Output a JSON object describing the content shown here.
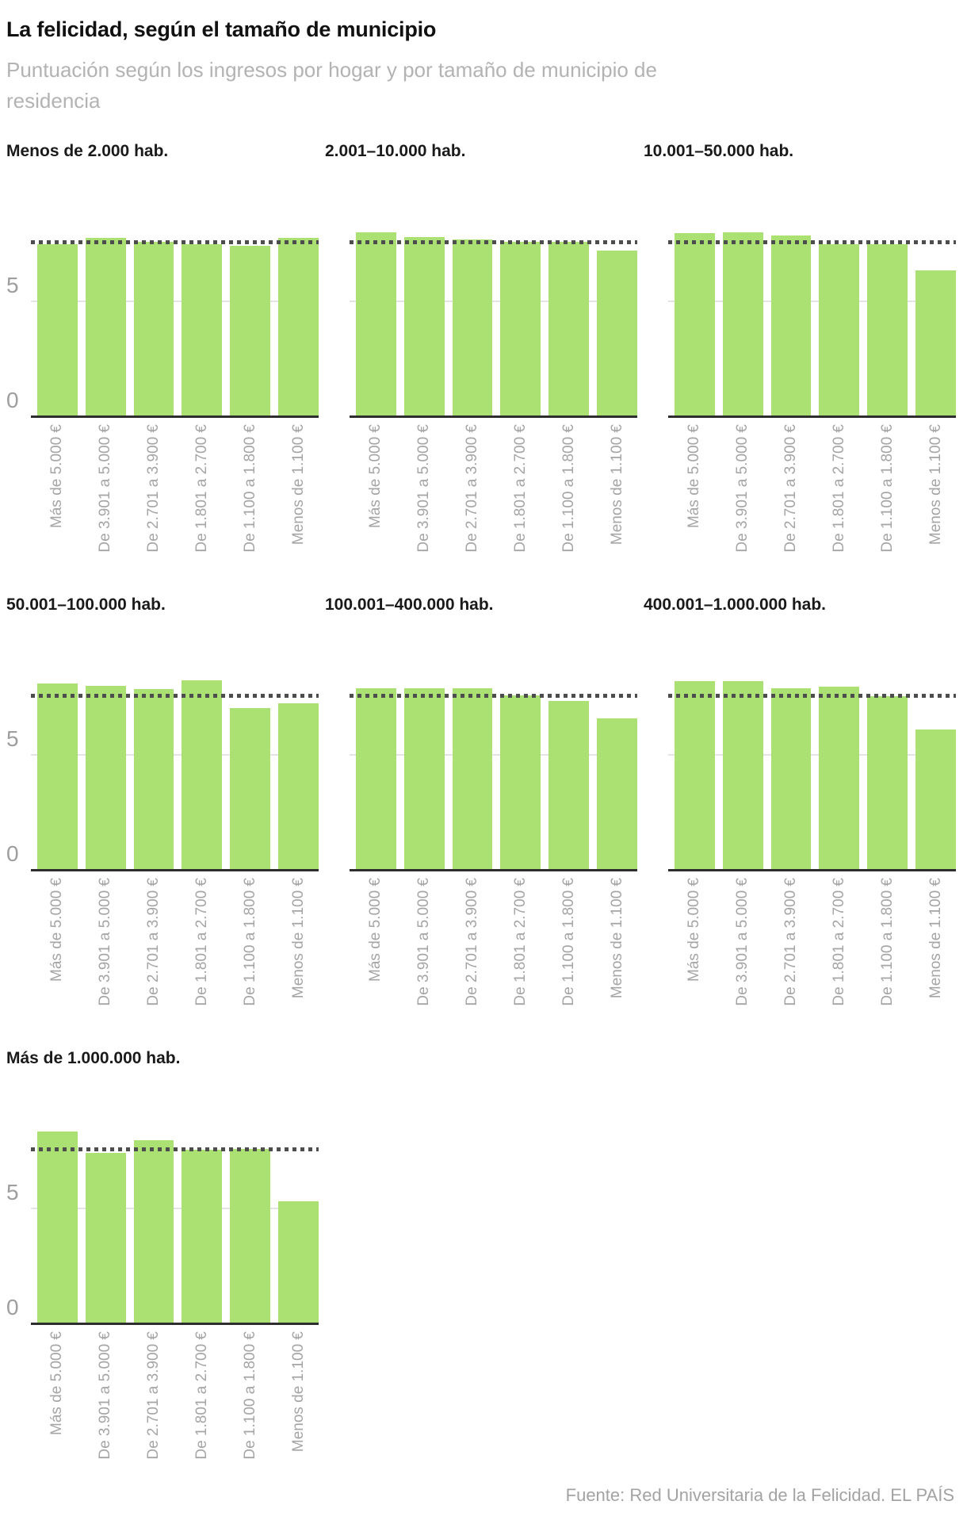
{
  "chart_data": {
    "type": "bar",
    "title": "La felicidad, según el tamaño de municipio",
    "subtitle": "Puntuación según los ingresos por hogar y por tamaño de municipio de residencia",
    "source": "Fuente: Red Universitaria de la Felicidad. EL PAÍS",
    "categories": [
      "Más de 5.000 €",
      "De 3.901 a 5.000 €",
      "De 2.701 a 3.900 €",
      "De 1.801 a 2.700 €",
      "De 1.100 a 1.800 €",
      "Menos de 1.100 €"
    ],
    "panels": [
      {
        "label": "Menos de 2.000 hab.",
        "values": [
          7.5,
          7.75,
          7.6,
          7.5,
          7.4,
          7.75
        ]
      },
      {
        "label": "2.001–10.000 hab.",
        "values": [
          8.0,
          7.8,
          7.7,
          7.6,
          7.6,
          7.2
        ]
      },
      {
        "label": "10.001–50.000 hab.",
        "values": [
          7.95,
          8.0,
          7.85,
          7.5,
          7.5,
          6.35
        ]
      },
      {
        "label": "50.001–100.000 hab.",
        "values": [
          8.1,
          8.0,
          7.85,
          8.25,
          7.05,
          7.25
        ]
      },
      {
        "label": "100.001–400.000 hab.",
        "values": [
          7.9,
          7.9,
          7.9,
          7.6,
          7.35,
          6.6
        ]
      },
      {
        "label": "400.001–1.000.000 hab.",
        "values": [
          8.2,
          8.2,
          7.9,
          7.95,
          7.55,
          6.1
        ]
      },
      {
        "label": "Más de 1.000.000 hab.",
        "values": [
          8.35,
          7.4,
          7.95,
          7.55,
          7.6,
          5.3
        ]
      }
    ],
    "ylim": [
      0,
      10
    ],
    "yticks": [
      "0",
      "5"
    ],
    "reference_line": 7.6,
    "bar_color": "#abe173",
    "columns": 3,
    "grid": "y-gridline-at-5-only",
    "legend": "none",
    "xlabel_rotation": -90
  },
  "colors": {
    "bar": "#abe173",
    "reference_dotted": "#4d4d4d",
    "gridline": "#e4e4e4",
    "baseline": "#2e2e2e",
    "tick_text": "#9e9e9e",
    "xlabel_text": "#a5a5a5",
    "subtitle_text": "#b3b3b3",
    "title_text": "#111111"
  }
}
